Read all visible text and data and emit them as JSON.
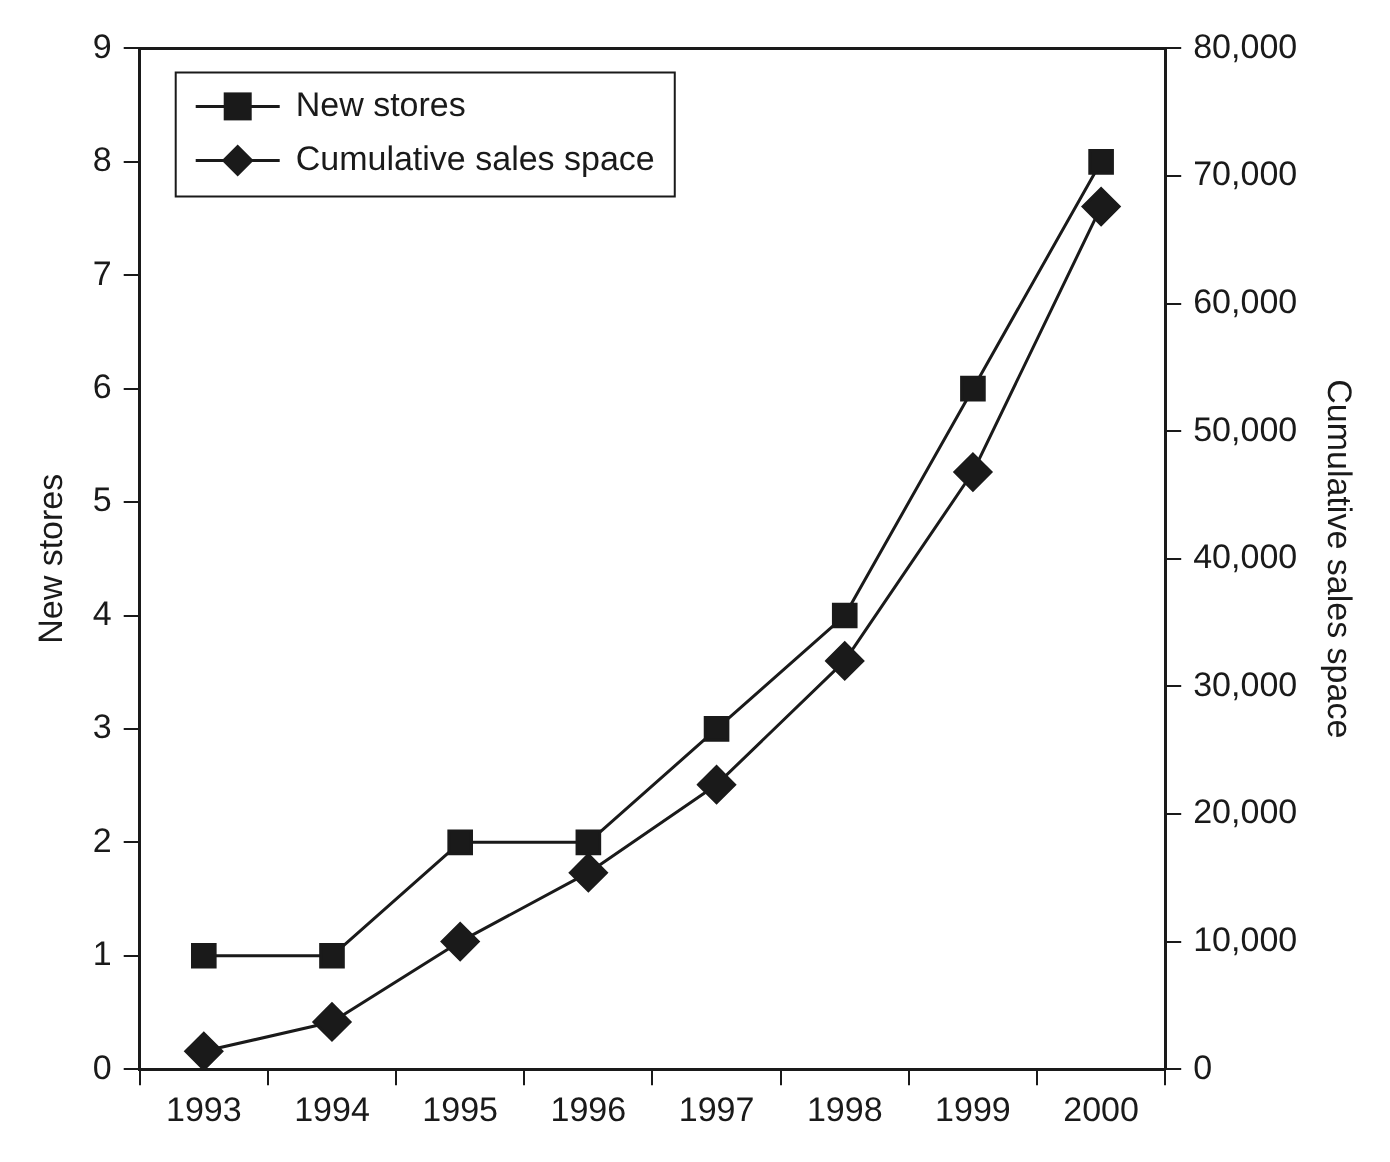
{
  "chart_data": {
    "type": "line",
    "categories": [
      "1993",
      "1994",
      "1995",
      "1996",
      "1997",
      "1998",
      "1999",
      "2000"
    ],
    "series": [
      {
        "name": "New stores",
        "color": "#1a1a1a",
        "marker": "square",
        "values": [
          1,
          1,
          2,
          2,
          3,
          4,
          6,
          8
        ]
      },
      {
        "name": "Cumulative sales space",
        "color": "#1a1a1a",
        "marker": "diamond",
        "axis": "y2",
        "values": [
          1400,
          3700,
          10000,
          15400,
          22300,
          32000,
          46800,
          67600
        ]
      }
    ],
    "ylabel": "New stores",
    "y2label": "Cumulative sales space",
    "ylim": [
      0,
      9
    ],
    "yticks": [
      0,
      1,
      2,
      3,
      4,
      5,
      6,
      7,
      8,
      9
    ],
    "y2lim": [
      0,
      80000
    ],
    "y2ticks": [
      {
        "value": 0,
        "label": "0"
      },
      {
        "value": 10000,
        "label": "10,000"
      },
      {
        "value": 20000,
        "label": "20,000"
      },
      {
        "value": 30000,
        "label": "30,000"
      },
      {
        "value": 40000,
        "label": "40,000"
      },
      {
        "value": 50000,
        "label": "50,000"
      },
      {
        "value": 60000,
        "label": "60,000"
      },
      {
        "value": 70000,
        "label": "70,000"
      },
      {
        "value": 80000,
        "label": "80,000"
      }
    ],
    "grid": false,
    "legend": "top left",
    "line_style": "solid"
  }
}
